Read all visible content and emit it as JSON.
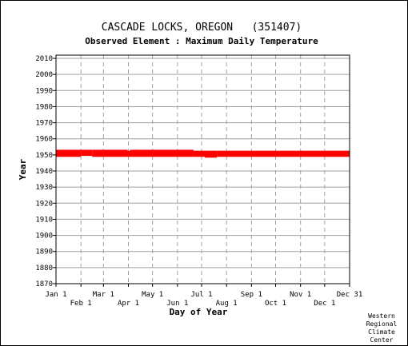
{
  "chart_data": {
    "type": "bar",
    "title": "CASCADE LOCKS, OREGON   (351407)",
    "subtitle": "Observed Element : Maximum Daily Temperature",
    "xlabel": "Day of Year",
    "ylabel": "Year",
    "ylim": [
      1870,
      2012
    ],
    "xlim": [
      1,
      366
    ],
    "grid": true,
    "y_ticks": [
      1870,
      1880,
      1890,
      1900,
      1910,
      1920,
      1930,
      1940,
      1950,
      1960,
      1970,
      1980,
      1990,
      2000,
      2010
    ],
    "x_ticks_upper": [
      {
        "label": "Jan 1",
        "day": 1
      },
      {
        "label": "Mar 1",
        "day": 60
      },
      {
        "label": "May 1",
        "day": 121
      },
      {
        "label": "Jul 1",
        "day": 182
      },
      {
        "label": "Sep 1",
        "day": 244
      },
      {
        "label": "Nov 1",
        "day": 305
      },
      {
        "label": "Dec 31",
        "day": 366
      }
    ],
    "x_ticks_lower": [
      {
        "label": "Feb 1",
        "day": 32
      },
      {
        "label": "Apr 1",
        "day": 91
      },
      {
        "label": "Jun 1",
        "day": 152
      },
      {
        "label": "Aug 1",
        "day": 213
      },
      {
        "label": "Oct 1",
        "day": 274
      },
      {
        "label": "Dec 1",
        "day": 335
      }
    ],
    "series_color": "#ff0000",
    "records": [
      {
        "start_day": 1,
        "end_day": 32,
        "start_year": 1948.8,
        "end_year": 1953.2
      },
      {
        "start_day": 32,
        "end_day": 46,
        "start_year": 1949.4,
        "end_year": 1953.2
      },
      {
        "start_day": 46,
        "end_day": 90,
        "start_year": 1948.8,
        "end_year": 1953.2
      },
      {
        "start_day": 90,
        "end_day": 93,
        "start_year": 1948.8,
        "end_year": 1952.6
      },
      {
        "start_day": 93,
        "end_day": 172,
        "start_year": 1948.8,
        "end_year": 1953.2
      },
      {
        "start_day": 172,
        "end_day": 186,
        "start_year": 1948.8,
        "end_year": 1952.6
      },
      {
        "start_day": 186,
        "end_day": 201,
        "start_year": 1948.3,
        "end_year": 1952.6
      },
      {
        "start_day": 201,
        "end_day": 366,
        "start_year": 1948.8,
        "end_year": 1952.6
      }
    ]
  },
  "credit": [
    "Western",
    "Regional",
    "Climate",
    "Center"
  ]
}
